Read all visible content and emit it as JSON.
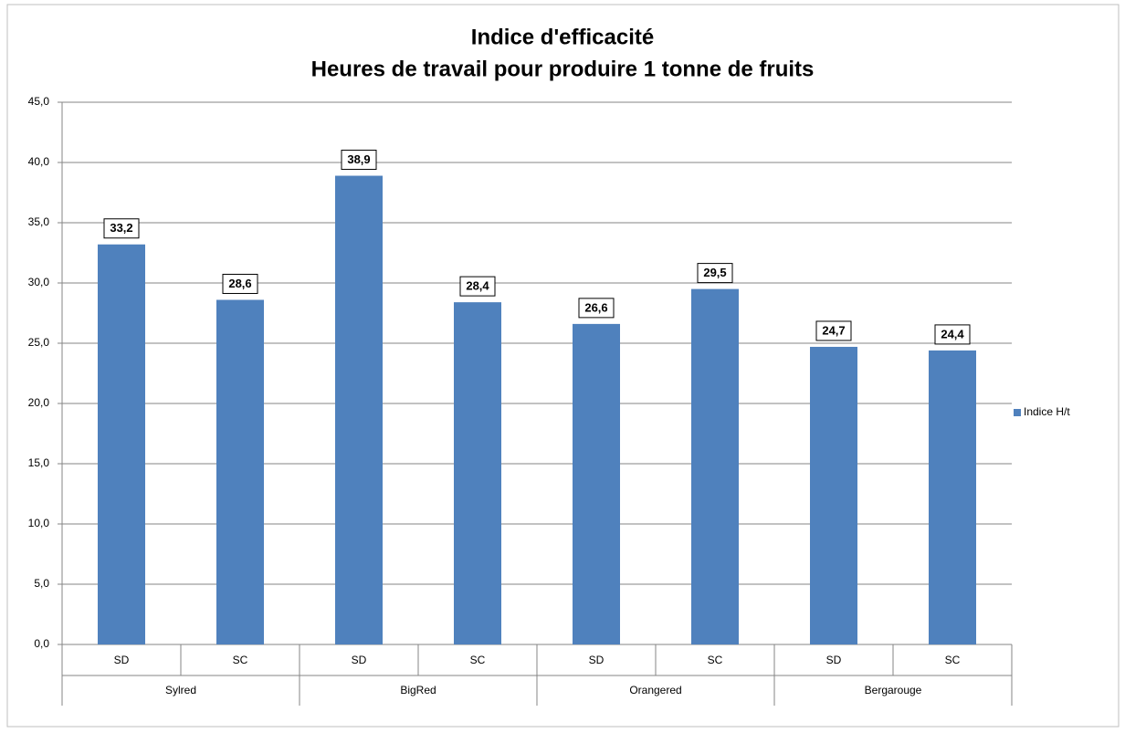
{
  "chart_data": {
    "type": "bar",
    "title": "Indice  d'efficacité",
    "subtitle": "Heures de travail pour produire 1 tonne de fruits",
    "categories": [
      "SD",
      "SC",
      "SD",
      "SC",
      "SD",
      "SC",
      "SD",
      "SC"
    ],
    "groups": [
      "Sylred",
      "BigRed",
      "Orangered",
      "Bergarouge"
    ],
    "series": [
      {
        "name": "Indice H/t",
        "color": "#4f81bd",
        "values": [
          33.2,
          28.6,
          38.9,
          28.4,
          26.6,
          29.5,
          24.7,
          24.4
        ],
        "value_labels": [
          "33,2",
          "28,6",
          "38,9",
          "28,4",
          "26,6",
          "29,5",
          "24,7",
          "24,4"
        ]
      }
    ],
    "ylim": [
      0,
      45
    ],
    "yticks": [
      {
        "value": 0,
        "label": "0,0"
      },
      {
        "value": 5,
        "label": "5,0"
      },
      {
        "value": 10,
        "label": "10,0"
      },
      {
        "value": 15,
        "label": "15,0"
      },
      {
        "value": 20,
        "label": "20,0"
      },
      {
        "value": 25,
        "label": "25,0"
      },
      {
        "value": 30,
        "label": "30,0"
      },
      {
        "value": 35,
        "label": "35,0"
      },
      {
        "value": 40,
        "label": "40,0"
      },
      {
        "value": 45,
        "label": "45,0"
      }
    ],
    "grid": true,
    "legend": "right"
  }
}
